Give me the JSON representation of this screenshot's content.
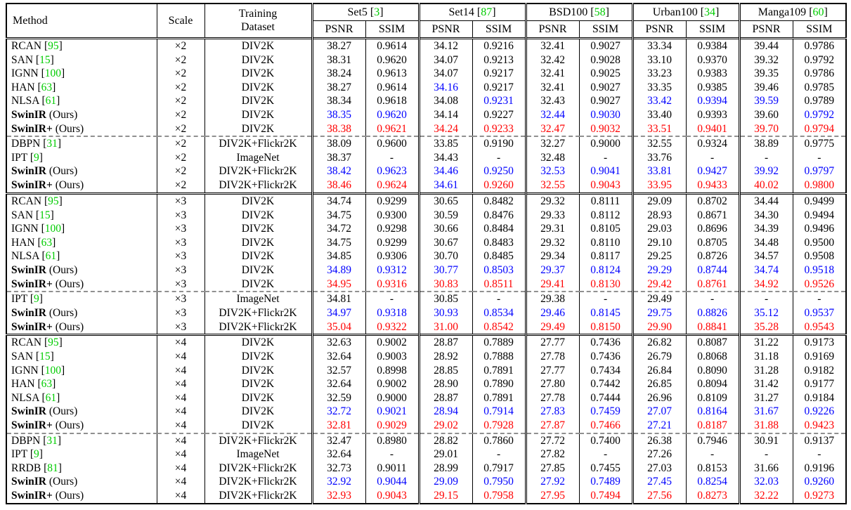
{
  "meta": {
    "ours_suffix": " (Ours)",
    "bracket_open": "[",
    "bracket_close": "]",
    "colors": {
      "best": "#ff0000",
      "second_best": "#0000ff",
      "default": "#000000",
      "citation": "#00cc00",
      "dashed_separator": "#909090"
    }
  },
  "header": {
    "method": "Method",
    "scale": "Scale",
    "training_line1": "Training",
    "training_line2": "Dataset",
    "psnr": "PSNR",
    "ssim": "SSIM",
    "groups": [
      {
        "name": "Set5",
        "cite": "3"
      },
      {
        "name": "Set14",
        "cite": "87"
      },
      {
        "name": "BSD100",
        "cite": "58"
      },
      {
        "name": "Urban100",
        "cite": "34"
      },
      {
        "name": "Manga109",
        "cite": "60"
      }
    ]
  },
  "blocks": [
    {
      "rows": [
        {
          "m": "RCAN",
          "cite": "95",
          "ours": false,
          "sc": "×2",
          "ds": "DIV2K",
          "v": [
            "38.27",
            "0.9614",
            "34.12",
            "0.9216",
            "32.41",
            "0.9027",
            "33.34",
            "0.9384",
            "39.44",
            "0.9786"
          ],
          "c": "kkkkkkkkkk",
          "dashed": false
        },
        {
          "m": "SAN",
          "cite": "15",
          "ours": false,
          "sc": "×2",
          "ds": "DIV2K",
          "v": [
            "38.31",
            "0.9620",
            "34.07",
            "0.9213",
            "32.42",
            "0.9028",
            "33.10",
            "0.9370",
            "39.32",
            "0.9792"
          ],
          "c": "kkkkkkkkkk",
          "dashed": false
        },
        {
          "m": "IGNN",
          "cite": "100",
          "ours": false,
          "sc": "×2",
          "ds": "DIV2K",
          "v": [
            "38.24",
            "0.9613",
            "34.07",
            "0.9217",
            "32.41",
            "0.9025",
            "33.23",
            "0.9383",
            "39.35",
            "0.9786"
          ],
          "c": "kkkkkkkkkk",
          "dashed": false
        },
        {
          "m": "HAN",
          "cite": "63",
          "ours": false,
          "sc": "×2",
          "ds": "DIV2K",
          "v": [
            "38.27",
            "0.9614",
            "34.16",
            "0.9217",
            "32.41",
            "0.9027",
            "33.35",
            "0.9385",
            "39.46",
            "0.9785"
          ],
          "c": "kkbkkkkkkk",
          "dashed": false
        },
        {
          "m": "NLSA",
          "cite": "61",
          "ours": false,
          "sc": "×2",
          "ds": "DIV2K",
          "v": [
            "38.34",
            "0.9618",
            "34.08",
            "0.9231",
            "32.43",
            "0.9027",
            "33.42",
            "0.9394",
            "39.59",
            "0.9789"
          ],
          "c": "kkkbkkbbbk",
          "dashed": false
        },
        {
          "m": "SwinIR",
          "cite": null,
          "ours": true,
          "sc": "×2",
          "ds": "DIV2K",
          "v": [
            "38.35",
            "0.9620",
            "34.14",
            "0.9227",
            "32.44",
            "0.9030",
            "33.40",
            "0.9393",
            "39.60",
            "0.9792"
          ],
          "c": "bbkkbbkkkb",
          "dashed": false
        },
        {
          "m": "SwinIR+",
          "cite": null,
          "ours": true,
          "sc": "×2",
          "ds": "DIV2K",
          "v": [
            "38.38",
            "0.9621",
            "34.24",
            "0.9233",
            "32.47",
            "0.9032",
            "33.51",
            "0.9401",
            "39.70",
            "0.9794"
          ],
          "c": "rrrrrrrrrr",
          "dashed": true
        },
        {
          "m": "DBPN",
          "cite": "31",
          "ours": false,
          "sc": "×2",
          "ds": "DIV2K+Flickr2K",
          "v": [
            "38.09",
            "0.9600",
            "33.85",
            "0.9190",
            "32.27",
            "0.9000",
            "32.55",
            "0.9324",
            "38.89",
            "0.9775"
          ],
          "c": "kkkkkkkkkk",
          "dashed": false
        },
        {
          "m": "IPT",
          "cite": "9",
          "ours": false,
          "sc": "×2",
          "ds": "ImageNet",
          "v": [
            "38.37",
            "-",
            "34.43",
            "-",
            "32.48",
            "-",
            "33.76",
            "-",
            "-",
            "-"
          ],
          "c": "kkkkkkkkkk",
          "dashed": false
        },
        {
          "m": "SwinIR",
          "cite": null,
          "ours": true,
          "sc": "×2",
          "ds": "DIV2K+Flickr2K",
          "v": [
            "38.42",
            "0.9623",
            "34.46",
            "0.9250",
            "32.53",
            "0.9041",
            "33.81",
            "0.9427",
            "39.92",
            "0.9797"
          ],
          "c": "bbbbbbbbbb",
          "dashed": false
        },
        {
          "m": "SwinIR+",
          "cite": null,
          "ours": true,
          "sc": "×2",
          "ds": "DIV2K+Flickr2K",
          "v": [
            "38.46",
            "0.9624",
            "34.61",
            "0.9260",
            "32.55",
            "0.9043",
            "33.95",
            "0.9433",
            "40.02",
            "0.9800"
          ],
          "c": "rrbrrrrrrr",
          "dashed": false
        }
      ]
    },
    {
      "rows": [
        {
          "m": "RCAN",
          "cite": "95",
          "ours": false,
          "sc": "×3",
          "ds": "DIV2K",
          "v": [
            "34.74",
            "0.9299",
            "30.65",
            "0.8482",
            "29.32",
            "0.8111",
            "29.09",
            "0.8702",
            "34.44",
            "0.9499"
          ],
          "c": "kkkkkkkkkk",
          "dashed": false
        },
        {
          "m": "SAN",
          "cite": "15",
          "ours": false,
          "sc": "×3",
          "ds": "DIV2K",
          "v": [
            "34.75",
            "0.9300",
            "30.59",
            "0.8476",
            "29.33",
            "0.8112",
            "28.93",
            "0.8671",
            "34.30",
            "0.9494"
          ],
          "c": "kkkkkkkkkk",
          "dashed": false
        },
        {
          "m": "IGNN",
          "cite": "100",
          "ours": false,
          "sc": "×3",
          "ds": "DIV2K",
          "v": [
            "34.72",
            "0.9298",
            "30.66",
            "0.8484",
            "29.31",
            "0.8105",
            "29.03",
            "0.8696",
            "34.39",
            "0.9496"
          ],
          "c": "kkkkkkkkkk",
          "dashed": false
        },
        {
          "m": "HAN",
          "cite": "63",
          "ours": false,
          "sc": "×3",
          "ds": "DIV2K",
          "v": [
            "34.75",
            "0.9299",
            "30.67",
            "0.8483",
            "29.32",
            "0.8110",
            "29.10",
            "0.8705",
            "34.48",
            "0.9500"
          ],
          "c": "kkkkkkkkkk",
          "dashed": false
        },
        {
          "m": "NLSA",
          "cite": "61",
          "ours": false,
          "sc": "×3",
          "ds": "DIV2K",
          "v": [
            "34.85",
            "0.9306",
            "30.70",
            "0.8485",
            "29.34",
            "0.8117",
            "29.25",
            "0.8726",
            "34.57",
            "0.9508"
          ],
          "c": "kkkkkkkkkk",
          "dashed": false
        },
        {
          "m": "SwinIR",
          "cite": null,
          "ours": true,
          "sc": "×3",
          "ds": "DIV2K",
          "v": [
            "34.89",
            "0.9312",
            "30.77",
            "0.8503",
            "29.37",
            "0.8124",
            "29.29",
            "0.8744",
            "34.74",
            "0.9518"
          ],
          "c": "bbbbbbbbbb",
          "dashed": false
        },
        {
          "m": "SwinIR+",
          "cite": null,
          "ours": true,
          "sc": "×3",
          "ds": "DIV2K",
          "v": [
            "34.95",
            "0.9316",
            "30.83",
            "0.8511",
            "29.41",
            "0.8130",
            "29.42",
            "0.8761",
            "34.92",
            "0.9526"
          ],
          "c": "rrrrrrrrrr",
          "dashed": true
        },
        {
          "m": "IPT",
          "cite": "9",
          "ours": false,
          "sc": "×3",
          "ds": "ImageNet",
          "v": [
            "34.81",
            "-",
            "30.85",
            "-",
            "29.38",
            "-",
            "29.49",
            "-",
            "-",
            "-"
          ],
          "c": "kkkkkkkkkk",
          "dashed": false
        },
        {
          "m": "SwinIR",
          "cite": null,
          "ours": true,
          "sc": "×3",
          "ds": "DIV2K+Flickr2K",
          "v": [
            "34.97",
            "0.9318",
            "30.93",
            "0.8534",
            "29.46",
            "0.8145",
            "29.75",
            "0.8826",
            "35.12",
            "0.9537"
          ],
          "c": "bbbbbbbbbb",
          "dashed": false
        },
        {
          "m": "SwinIR+",
          "cite": null,
          "ours": true,
          "sc": "×3",
          "ds": "DIV2K+Flickr2K",
          "v": [
            "35.04",
            "0.9322",
            "31.00",
            "0.8542",
            "29.49",
            "0.8150",
            "29.90",
            "0.8841",
            "35.28",
            "0.9543"
          ],
          "c": "rrrrrrrrrr",
          "dashed": false
        }
      ]
    },
    {
      "rows": [
        {
          "m": "RCAN",
          "cite": "95",
          "ours": false,
          "sc": "×4",
          "ds": "DIV2K",
          "v": [
            "32.63",
            "0.9002",
            "28.87",
            "0.7889",
            "27.77",
            "0.7436",
            "26.82",
            "0.8087",
            "31.22",
            "0.9173"
          ],
          "c": "kkkkkkkkkk",
          "dashed": false
        },
        {
          "m": "SAN",
          "cite": "15",
          "ours": false,
          "sc": "×4",
          "ds": "DIV2K",
          "v": [
            "32.64",
            "0.9003",
            "28.92",
            "0.7888",
            "27.78",
            "0.7436",
            "26.79",
            "0.8068",
            "31.18",
            "0.9169"
          ],
          "c": "kkkkkkkkkk",
          "dashed": false
        },
        {
          "m": "IGNN",
          "cite": "100",
          "ours": false,
          "sc": "×4",
          "ds": "DIV2K",
          "v": [
            "32.57",
            "0.8998",
            "28.85",
            "0.7891",
            "27.77",
            "0.7434",
            "26.84",
            "0.8090",
            "31.28",
            "0.9182"
          ],
          "c": "kkkkkkkkkk",
          "dashed": false
        },
        {
          "m": "HAN",
          "cite": "63",
          "ours": false,
          "sc": "×4",
          "ds": "DIV2K",
          "v": [
            "32.64",
            "0.9002",
            "28.90",
            "0.7890",
            "27.80",
            "0.7442",
            "26.85",
            "0.8094",
            "31.42",
            "0.9177"
          ],
          "c": "kkkkkkkkkk",
          "dashed": false
        },
        {
          "m": "NLSA",
          "cite": "61",
          "ours": false,
          "sc": "×4",
          "ds": "DIV2K",
          "v": [
            "32.59",
            "0.9000",
            "28.87",
            "0.7891",
            "27.78",
            "0.7444",
            "26.96",
            "0.8109",
            "31.27",
            "0.9184"
          ],
          "c": "kkkkkkkkkk",
          "dashed": false
        },
        {
          "m": "SwinIR",
          "cite": null,
          "ours": true,
          "sc": "×4",
          "ds": "DIV2K",
          "v": [
            "32.72",
            "0.9021",
            "28.94",
            "0.7914",
            "27.83",
            "0.7459",
            "27.07",
            "0.8164",
            "31.67",
            "0.9226"
          ],
          "c": "bbbbbbbbbb",
          "dashed": false
        },
        {
          "m": "SwinIR+",
          "cite": null,
          "ours": true,
          "sc": "×4",
          "ds": "DIV2K",
          "v": [
            "32.81",
            "0.9029",
            "29.02",
            "0.7928",
            "27.87",
            "0.7466",
            "27.21",
            "0.8187",
            "31.88",
            "0.9423"
          ],
          "c": "rrrrrrbrrr",
          "dashed": true
        },
        {
          "m": "DBPN",
          "cite": "31",
          "ours": false,
          "sc": "×4",
          "ds": "DIV2K+Flickr2K",
          "v": [
            "32.47",
            "0.8980",
            "28.82",
            "0.7860",
            "27.72",
            "0.7400",
            "26.38",
            "0.7946",
            "30.91",
            "0.9137"
          ],
          "c": "kkkkkkkkkk",
          "dashed": false
        },
        {
          "m": "IPT",
          "cite": "9",
          "ours": false,
          "sc": "×4",
          "ds": "ImageNet",
          "v": [
            "32.64",
            "-",
            "29.01",
            "-",
            "27.82",
            "-",
            "27.26",
            "-",
            "-",
            "-"
          ],
          "c": "kkkkkkkkkk",
          "dashed": false
        },
        {
          "m": "RRDB",
          "cite": "81",
          "ours": false,
          "sc": "×4",
          "ds": "DIV2K+Flickr2K",
          "v": [
            "32.73",
            "0.9011",
            "28.99",
            "0.7917",
            "27.85",
            "0.7455",
            "27.03",
            "0.8153",
            "31.66",
            "0.9196"
          ],
          "c": "kkkkkkkkkk",
          "dashed": false
        },
        {
          "m": "SwinIR",
          "cite": null,
          "ours": true,
          "sc": "×4",
          "ds": "DIV2K+Flickr2K",
          "v": [
            "32.92",
            "0.9044",
            "29.09",
            "0.7950",
            "27.92",
            "0.7489",
            "27.45",
            "0.8254",
            "32.03",
            "0.9260"
          ],
          "c": "bbbbbbbbbb",
          "dashed": false
        },
        {
          "m": "SwinIR+",
          "cite": null,
          "ours": true,
          "sc": "×4",
          "ds": "DIV2K+Flickr2K",
          "v": [
            "32.93",
            "0.9043",
            "29.15",
            "0.7958",
            "27.95",
            "0.7494",
            "27.56",
            "0.8273",
            "32.22",
            "0.9273"
          ],
          "c": "rrrrrrrrrr",
          "dashed": false
        }
      ]
    }
  ]
}
